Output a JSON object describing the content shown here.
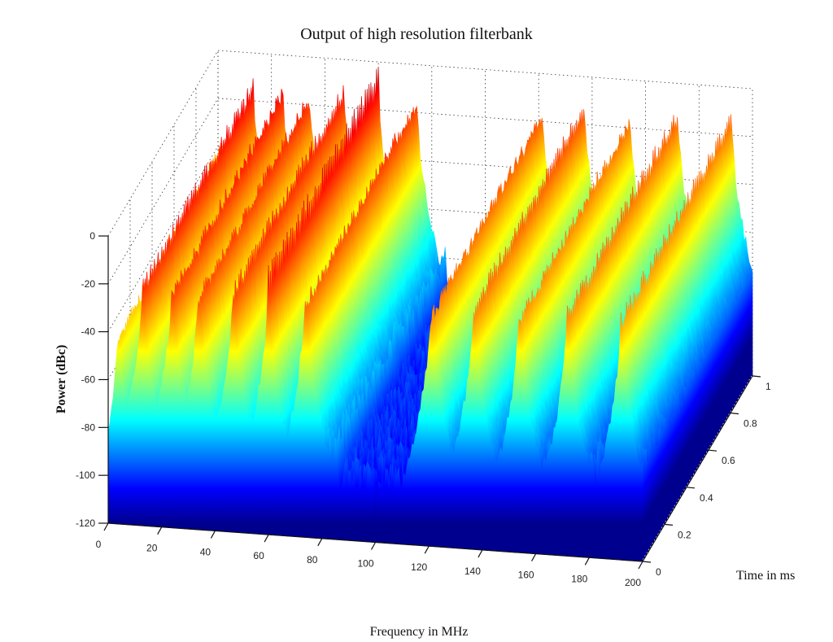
{
  "chart_data": {
    "type": "waterfall-3d",
    "title": "Output of high resolution filterbank",
    "xlabel": "Frequency in MHz",
    "ylabel": "Time in ms",
    "zlabel": "Power (dBc)",
    "xlim": [
      0,
      200
    ],
    "ylim": [
      0,
      1
    ],
    "zlim": [
      -120,
      0
    ],
    "xticks": [
      "0",
      "20",
      "40",
      "60",
      "80",
      "100",
      "120",
      "140",
      "160",
      "180",
      "200"
    ],
    "yticks": [
      "0",
      "0.2",
      "0.4",
      "0.6",
      "0.8",
      "1"
    ],
    "zticks": [
      "0",
      "-20",
      "-40",
      "-60",
      "-80",
      "-100",
      "-120"
    ],
    "grid": true,
    "colormap": "jet",
    "colors": {
      "low": "#00008f",
      "mid": "#ffff00",
      "high": "#800000"
    },
    "noise_floor_dbc": -82,
    "notch_region_mhz": [
      86,
      118
    ],
    "notch_floor_dbc": -95,
    "carriers": [
      {
        "freq_mhz": 4,
        "peak_dbc": -22
      },
      {
        "freq_mhz": 13,
        "peak_dbc": -4
      },
      {
        "freq_mhz": 24,
        "peak_dbc": -3
      },
      {
        "freq_mhz": 34,
        "peak_dbc": -4
      },
      {
        "freq_mhz": 47,
        "peak_dbc": -3
      },
      {
        "freq_mhz": 60,
        "peak_dbc": -4
      },
      {
        "freq_mhz": 74,
        "peak_dbc": -3
      },
      {
        "freq_mhz": 121,
        "peak_dbc": -4
      },
      {
        "freq_mhz": 137,
        "peak_dbc": -3
      },
      {
        "freq_mhz": 154,
        "peak_dbc": -4
      },
      {
        "freq_mhz": 172,
        "peak_dbc": -3
      },
      {
        "freq_mhz": 192,
        "peak_dbc": -4
      }
    ],
    "time_slices": 60,
    "freq_points": 320
  }
}
